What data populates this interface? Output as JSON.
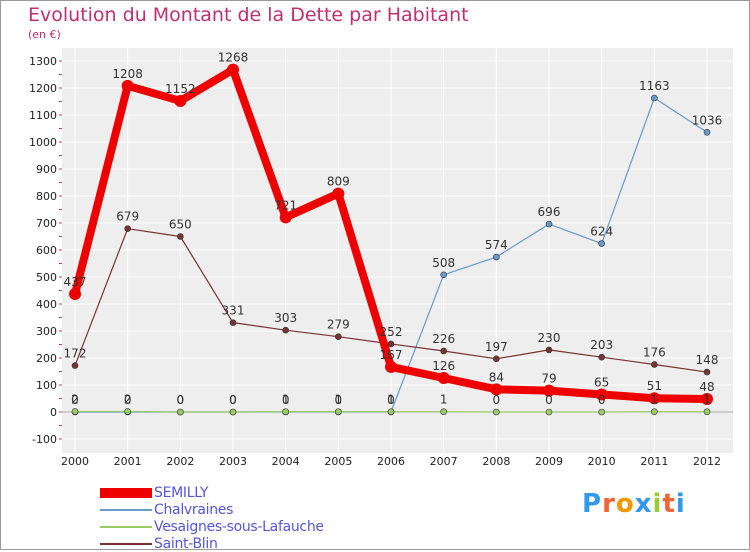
{
  "chart_data": {
    "type": "line",
    "title": "Evolution du Montant de la Dette par Habitant",
    "subtitle": "(en €)",
    "x": [
      "2000",
      "2001",
      "2002",
      "2003",
      "2004",
      "2005",
      "2006",
      "2007",
      "2008",
      "2009",
      "2010",
      "2011",
      "2012"
    ],
    "ylim": [
      -100,
      1300
    ],
    "yticks": [
      -100,
      0,
      100,
      200,
      300,
      400,
      500,
      600,
      700,
      800,
      900,
      1000,
      1100,
      1200,
      1300
    ],
    "grid": true,
    "legend_position": "bottom-left",
    "series": [
      {
        "name": "SEMILLY",
        "color": "#ee0000",
        "values": [
          437,
          1208,
          1152,
          1268,
          721,
          809,
          167,
          126,
          84,
          79,
          65,
          51,
          48
        ],
        "labels": [
          "437",
          "1208",
          "1152",
          "1268",
          "721",
          "809",
          "167",
          "126",
          "84",
          "79",
          "65",
          "51",
          "48"
        ]
      },
      {
        "name": "Chalvraines",
        "color": "#6699cc",
        "values": [
          0,
          0,
          0,
          0,
          0,
          0,
          0,
          508,
          574,
          696,
          624,
          1163,
          1036
        ],
        "labels": [
          "0",
          "0",
          "0",
          "0",
          "0",
          "0",
          "0",
          "508",
          "574",
          "696",
          "624",
          "1163",
          "1036"
        ]
      },
      {
        "name": "Vesaignes-sous-Lafauche",
        "color": "#99cc66",
        "values": [
          2,
          2,
          0,
          0,
          1,
          1,
          1,
          1,
          0,
          0,
          0,
          1,
          1
        ],
        "labels": [
          "2",
          "2",
          "0",
          "0",
          "1",
          "1",
          "1",
          "1",
          "0",
          "0",
          "0",
          "1",
          "1"
        ]
      },
      {
        "name": "Saint-Blin",
        "color": "#773333",
        "values": [
          172,
          679,
          650,
          331,
          303,
          279,
          252,
          226,
          197,
          230,
          203,
          176,
          148
        ],
        "labels": [
          "172",
          "679",
          "650",
          "331",
          "303",
          "279",
          "252",
          "226",
          "197",
          "230",
          "203",
          "176",
          "148"
        ]
      }
    ]
  },
  "logo": {
    "letters": [
      "P",
      "r",
      "o",
      "x",
      "i",
      "t",
      "i"
    ],
    "colors": [
      "#3399ee",
      "#ee6633",
      "#ee9900",
      "#3399ee",
      "#99cc33",
      "#ee6633",
      "#3399ee"
    ]
  }
}
